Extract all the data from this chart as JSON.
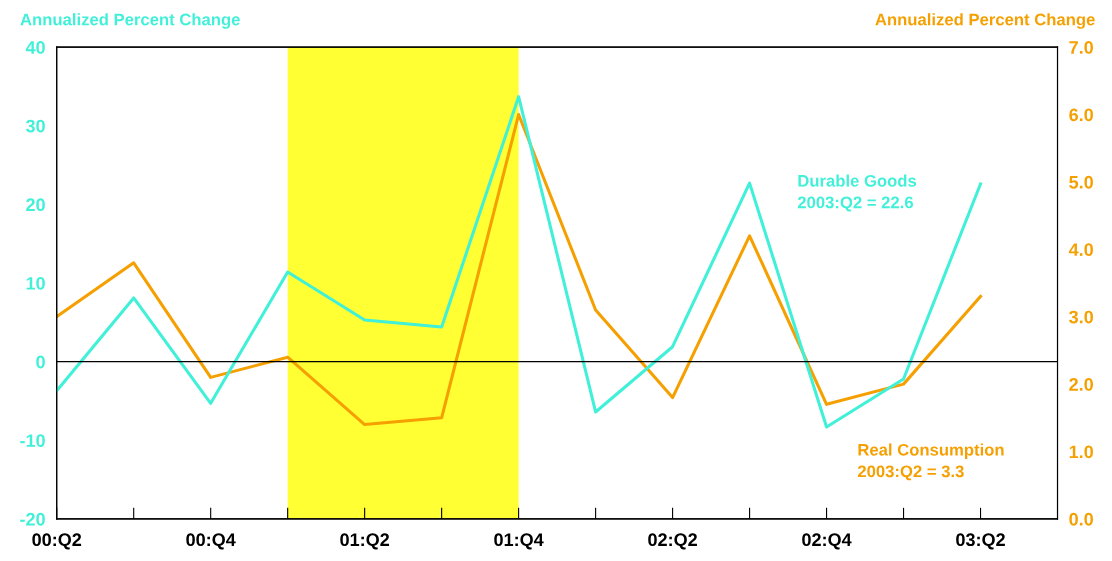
{
  "chart_data": {
    "type": "line",
    "ylabel": "Annualized Percent Change",
    "y2label": "Annualized Percent Change",
    "categories": [
      "00:Q2",
      null,
      "00:Q4",
      null,
      "01:Q2",
      null,
      "01:Q4",
      null,
      "02:Q2",
      null,
      "02:Q4",
      null,
      "03:Q2"
    ],
    "series": [
      {
        "name": "Durable Goods",
        "color": "#40f0d8",
        "values": [
          -3.7,
          8.1,
          -5.3,
          11.4,
          5.3,
          4.4,
          33.7,
          -6.4,
          1.9,
          22.7,
          -8.3,
          -2.2,
          22.6
        ]
      },
      {
        "name": "Real Consumption",
        "color": "#f5a000",
        "axis": "y2",
        "values": [
          3.0,
          3.8,
          2.1,
          2.4,
          1.4,
          1.5,
          6.0,
          3.1,
          1.8,
          4.2,
          1.7,
          2.0,
          3.3
        ]
      }
    ],
    "annotations": [
      "2003:Q2 = 22.6",
      "2003:Q2 = 3.3"
    ],
    "ylim": [
      -20,
      40
    ],
    "yticks": [
      -20,
      -10,
      0,
      10,
      20,
      30,
      40
    ],
    "y2lim": [
      0,
      7
    ],
    "y2ticks": [
      {
        "value": 0,
        "label": "0.0"
      },
      {
        "value": 1,
        "label": "1.0"
      },
      {
        "value": 2,
        "label": "2.0"
      },
      {
        "value": 3,
        "label": "3.0"
      },
      {
        "value": 4,
        "label": "4.0"
      },
      {
        "value": 5,
        "label": "5.0"
      },
      {
        "value": 6,
        "label": "6.0"
      },
      {
        "value": 7,
        "label": "7.0"
      }
    ],
    "ref_lines": [
      {
        "axis": "y",
        "value": 0,
        "color": "#000000"
      }
    ],
    "grid": false,
    "marker": "none",
    "line_style": "solid"
  }
}
